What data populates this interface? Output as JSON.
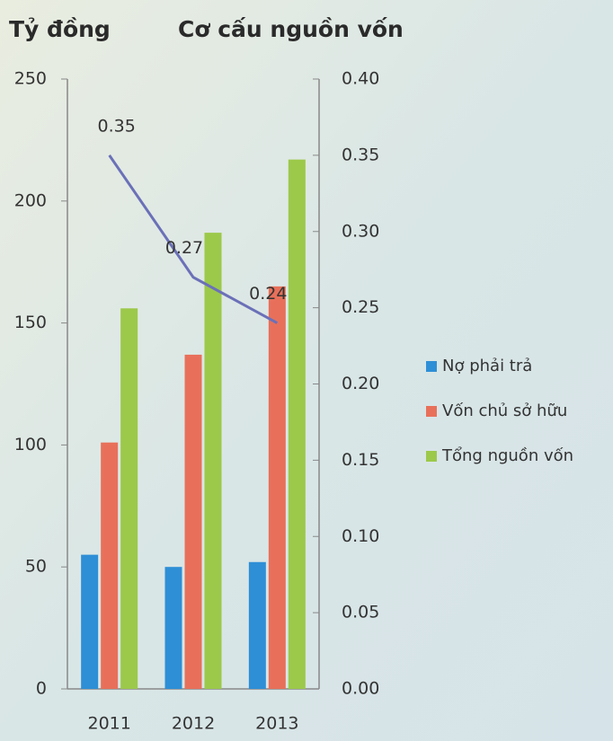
{
  "chart_data": {
    "type": "bar",
    "title": "Cơ cấu nguồn vốn",
    "y_label": "Tỷ đồng",
    "categories": [
      "2011",
      "2012",
      "2013"
    ],
    "series": [
      {
        "name": "Nợ phải trả",
        "color": "#2e8fd6",
        "values": [
          55,
          50,
          52
        ]
      },
      {
        "name": "Vốn chủ sở hữu",
        "color": "#e8705a",
        "values": [
          101,
          137,
          165
        ]
      },
      {
        "name": "Tổng nguồn vốn",
        "color": "#9cc94a",
        "values": [
          156,
          187,
          217
        ]
      },
      {
        "type": "line",
        "axis": "y2",
        "color": "#6b70b8",
        "values": [
          0.35,
          0.27,
          0.24
        ]
      }
    ],
    "ylim": [
      0,
      250
    ],
    "yticks": [
      0,
      50,
      100,
      150,
      200,
      250
    ],
    "y2lim": [
      0,
      0.4
    ],
    "y2ticks": [
      {
        "value": 0,
        "label": "0.00"
      },
      {
        "value": 0.05,
        "label": "0.05"
      },
      {
        "value": 0.1,
        "label": "0.10"
      },
      {
        "value": 0.15,
        "label": "0.15"
      },
      {
        "value": 0.2,
        "label": "0.20"
      },
      {
        "value": 0.25,
        "label": "0.25"
      },
      {
        "value": 0.3,
        "label": "0.30"
      },
      {
        "value": 0.35,
        "label": "0.35"
      },
      {
        "value": 0.4,
        "label": "0.40"
      }
    ],
    "legend": "right"
  }
}
